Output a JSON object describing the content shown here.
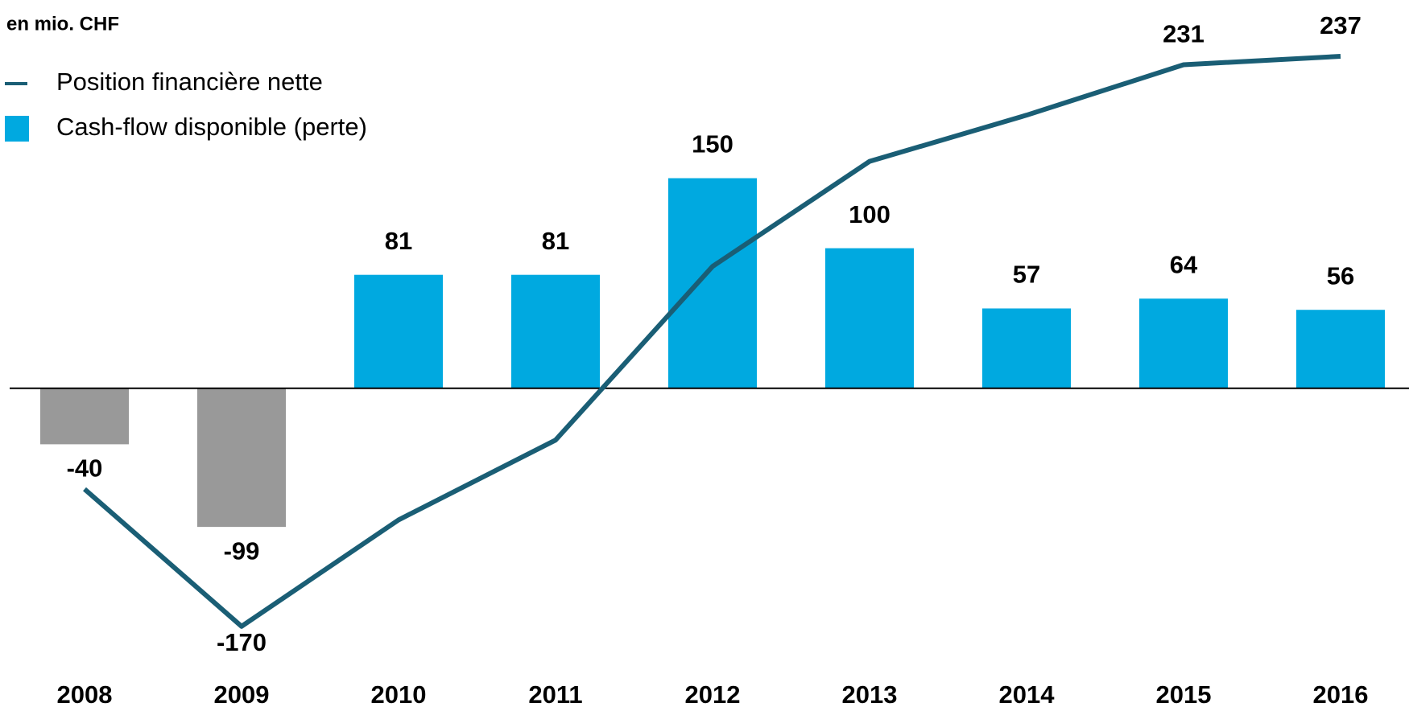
{
  "chart_data": {
    "type": "bar_line",
    "title": "en mio. CHF",
    "categories": [
      "2008",
      "2009",
      "2010",
      "2011",
      "2012",
      "2013",
      "2014",
      "2015",
      "2016"
    ],
    "ylim": [
      -200,
      260
    ],
    "legend": "top-left",
    "series": [
      {
        "name": "Position financière nette",
        "type": "line",
        "color": "#1a5e75",
        "values": [
          -72,
          -170,
          -94,
          -37,
          87,
          162,
          195,
          231,
          237
        ],
        "value_labels": [
          null,
          "-170",
          null,
          null,
          null,
          null,
          null,
          "231",
          "237"
        ]
      },
      {
        "name": "Cash-flow disponible (perte)",
        "type": "bar",
        "color": "#00a9e0",
        "colors": [
          "#999999",
          "#999999",
          "#00a9e0",
          "#00a9e0",
          "#00a9e0",
          "#00a9e0",
          "#00a9e0",
          "#00a9e0",
          "#00a9e0"
        ],
        "values": [
          -40,
          -99,
          81,
          81,
          150,
          100,
          57,
          64,
          56
        ]
      }
    ]
  }
}
